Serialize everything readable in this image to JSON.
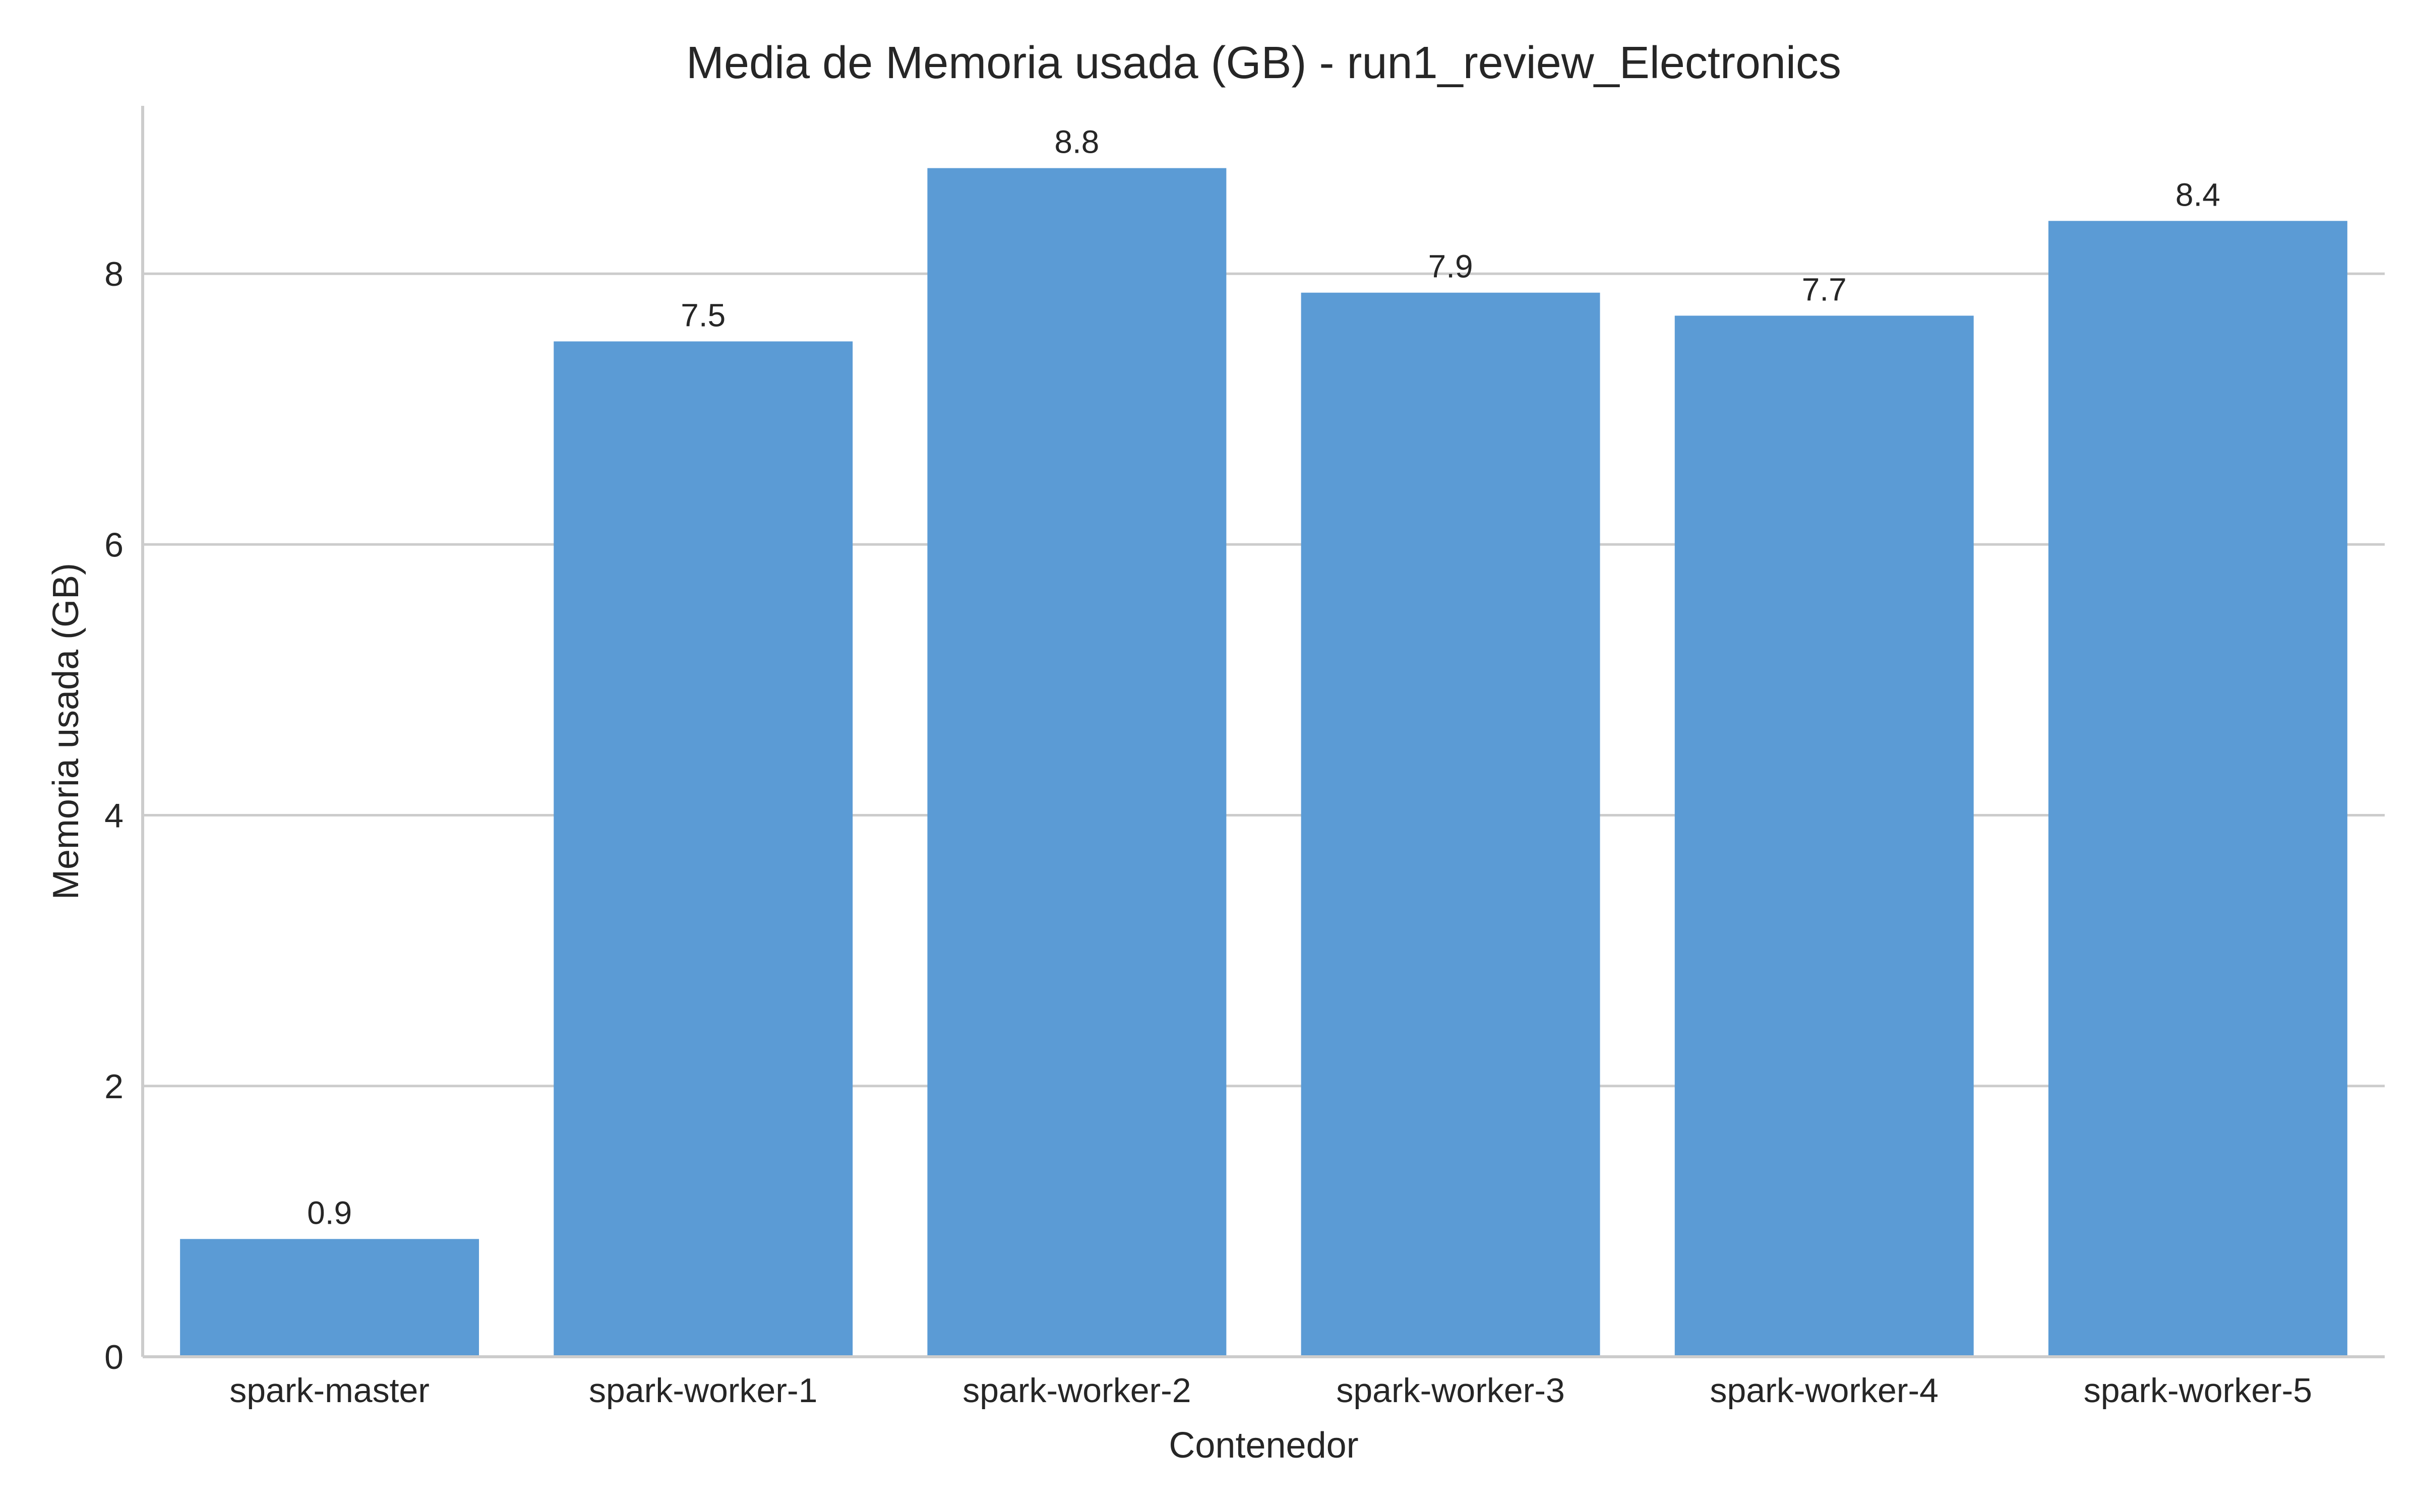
{
  "chart_data": {
    "type": "bar",
    "title": "Media de Memoria usada (GB) - run1_review_Electronics",
    "xlabel": "Contenedor",
    "ylabel": "Memoria usada (GB)",
    "categories": [
      "spark-master",
      "spark-worker-1",
      "spark-worker-2",
      "spark-worker-3",
      "spark-worker-4",
      "spark-worker-5"
    ],
    "values": [
      0.87,
      7.5,
      8.78,
      7.86,
      7.69,
      8.39
    ],
    "value_labels": [
      "0.9",
      "7.5",
      "8.8",
      "7.9",
      "7.7",
      "8.4"
    ],
    "ylim": [
      0,
      9.24
    ],
    "yticks": [
      0,
      2,
      4,
      6,
      8
    ],
    "ytick_labels": [
      "0",
      "2",
      "4",
      "6",
      "8"
    ],
    "grid": "horizontal",
    "bar_color": "#5b9bd5"
  }
}
